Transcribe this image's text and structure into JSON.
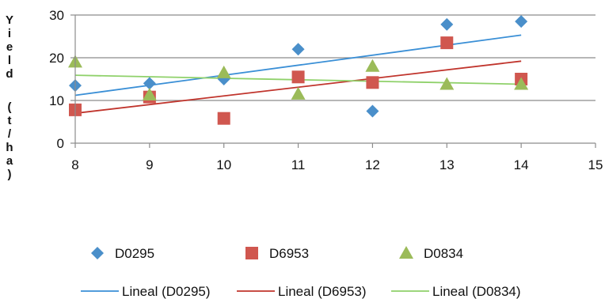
{
  "chart_data": {
    "type": "scatter",
    "ylabel": "Yield (t/ha)",
    "xlim": [
      8,
      15
    ],
    "ylim": [
      0,
      30
    ],
    "x_ticks": [
      "8",
      "9",
      "10",
      "11",
      "12",
      "13",
      "14",
      "15"
    ],
    "y_ticks": [
      "0",
      "10",
      "20",
      "30"
    ],
    "grid": "horizontal",
    "legend_position": "bottom",
    "series": [
      {
        "name": "D0295",
        "marker": "diamond",
        "color": "#4a8fca",
        "points": [
          [
            8,
            13.5
          ],
          [
            9,
            14
          ],
          [
            10,
            15
          ],
          [
            11,
            22
          ],
          [
            12,
            7.5
          ],
          [
            13,
            27.8
          ],
          [
            14,
            28.5
          ]
        ]
      },
      {
        "name": "D6953",
        "marker": "square",
        "color": "#d0574f",
        "points": [
          [
            8,
            7.8
          ],
          [
            9,
            10.8
          ],
          [
            10,
            5.8
          ],
          [
            11,
            15.5
          ],
          [
            12,
            14.2
          ],
          [
            13,
            23.5
          ],
          [
            14,
            15
          ]
        ]
      },
      {
        "name": "D0834",
        "marker": "triangle",
        "color": "#9bbb59",
        "points": [
          [
            8,
            19
          ],
          [
            9,
            11.3
          ],
          [
            10,
            16.5
          ],
          [
            11,
            11.5
          ],
          [
            12,
            18
          ],
          [
            13,
            13.8
          ],
          [
            14,
            13.8
          ]
        ]
      }
    ],
    "trendlines": [
      {
        "name": "Lineal (D0295)",
        "color": "#3a8fd6",
        "start": [
          8,
          11.2
        ],
        "end": [
          14,
          25.3
        ]
      },
      {
        "name": "Lineal (D6953)",
        "color": "#c0342c",
        "start": [
          8,
          7.0
        ],
        "end": [
          14,
          19.2
        ]
      },
      {
        "name": "Lineal (D0834)",
        "color": "#8fd16a",
        "start": [
          8,
          15.9
        ],
        "end": [
          14,
          13.8
        ]
      }
    ]
  }
}
